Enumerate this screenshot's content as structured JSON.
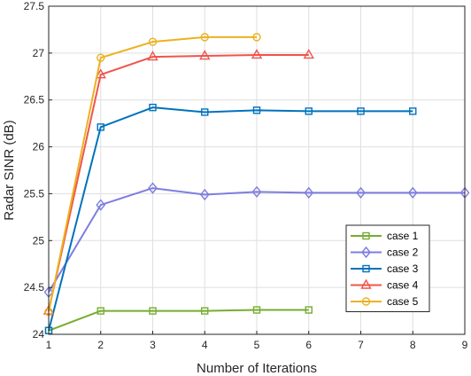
{
  "chart_data": {
    "type": "line",
    "title": "",
    "xlabel": "Number of Iterations",
    "ylabel": "Radar SINR (dB)",
    "xlim": [
      1,
      9
    ],
    "ylim": [
      24,
      27.5
    ],
    "xticks": [
      1,
      2,
      3,
      4,
      5,
      6,
      7,
      8,
      9
    ],
    "yticks": [
      24,
      24.5,
      25,
      25.5,
      26,
      26.5,
      27,
      27.5
    ],
    "xtick_labels": [
      "1",
      "2",
      "3",
      "4",
      "5",
      "6",
      "7",
      "8",
      "9"
    ],
    "ytick_labels": [
      "24",
      "24.5",
      "25",
      "25.5",
      "26",
      "26.5",
      "27",
      "27.5"
    ],
    "grid": true,
    "legend_position": "right",
    "series": [
      {
        "name": "case 1",
        "color": "#77AC30",
        "marker": "square",
        "x": [
          1,
          2,
          3,
          4,
          5,
          6
        ],
        "values": [
          24.04,
          24.25,
          24.25,
          24.25,
          24.26,
          24.26
        ]
      },
      {
        "name": "case 2",
        "color": "#7E7EE0",
        "marker": "diamond",
        "x": [
          1,
          2,
          3,
          4,
          5,
          6,
          7,
          8,
          9
        ],
        "values": [
          24.45,
          25.38,
          25.56,
          25.49,
          25.52,
          25.51,
          25.51,
          25.51,
          25.51
        ]
      },
      {
        "name": "case 3",
        "color": "#0072BD",
        "marker": "square",
        "x": [
          1,
          2,
          3,
          4,
          5,
          6,
          7,
          8
        ],
        "values": [
          24.04,
          26.21,
          26.42,
          26.37,
          26.39,
          26.38,
          26.38,
          26.38
        ]
      },
      {
        "name": "case 4",
        "color": "#F0544C",
        "marker": "triangle",
        "x": [
          1,
          2,
          3,
          4,
          5,
          6
        ],
        "values": [
          24.25,
          26.77,
          26.96,
          26.97,
          26.98,
          26.98
        ]
      },
      {
        "name": "case 5",
        "color": "#EDB120",
        "marker": "circle",
        "x": [
          1,
          2,
          3,
          4,
          5
        ],
        "values": [
          24.24,
          26.95,
          27.12,
          27.17,
          27.17
        ]
      }
    ]
  }
}
